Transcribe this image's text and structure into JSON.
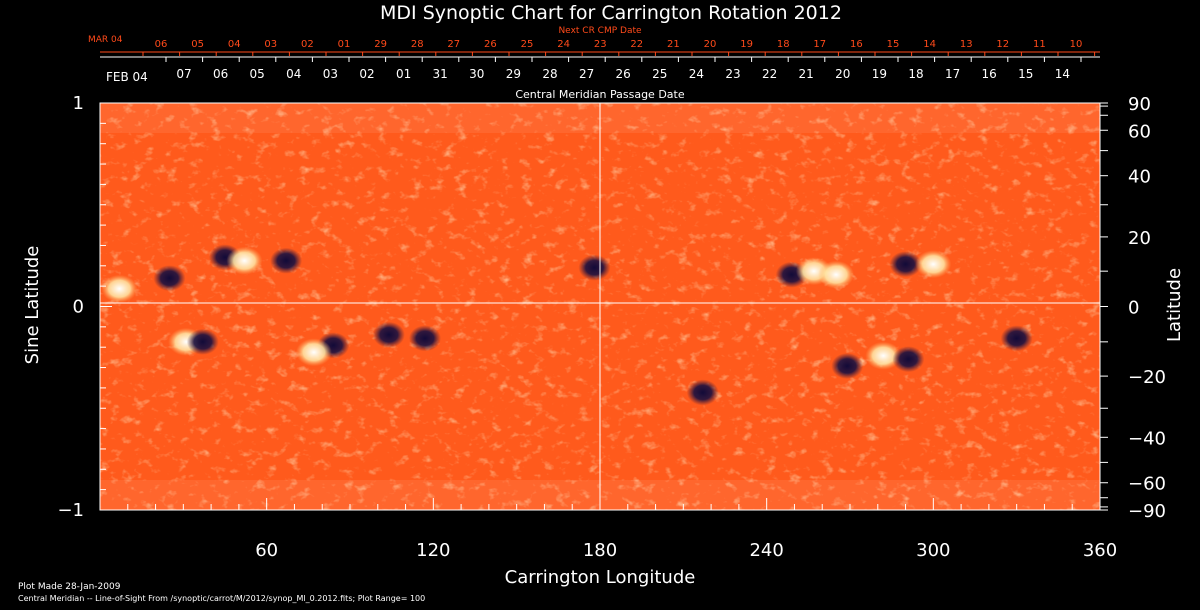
{
  "chart_data": {
    "type": "heatmap",
    "title": "MDI Synoptic Chart for Carrington Rotation 2012",
    "xlabel": "Carrington Longitude",
    "ylabel_left": "Sine Latitude",
    "ylabel_right": "Latitude",
    "top_axis_label": "Central Meridian Passage Date",
    "next_cr_label": "Next CR CMP Date",
    "xlim": [
      0,
      360
    ],
    "ylim": [
      -1,
      1
    ],
    "x_ticks": [
      60,
      120,
      180,
      240,
      300,
      360
    ],
    "y_ticks_left": [
      "1",
      "0",
      "−1"
    ],
    "y_ticks_right": [
      "90",
      "60",
      "40",
      "20",
      "0",
      "−20",
      "−40",
      "−60",
      "−90"
    ],
    "top_dates_black": {
      "month": "FEB 04",
      "labels": [
        "07",
        "06",
        "05",
        "04",
        "03",
        "02",
        "01",
        "31",
        "30",
        "29",
        "28",
        "27",
        "26",
        "25",
        "24",
        "23",
        "22",
        "21",
        "20",
        "19",
        "18",
        "17",
        "16",
        "15",
        "14"
      ]
    },
    "top_dates_red": {
      "month": "MAR 04",
      "labels": [
        "06",
        "05",
        "04",
        "03",
        "02",
        "01",
        "29",
        "28",
        "27",
        "26",
        "25",
        "24",
        "23",
        "22",
        "21",
        "20",
        "19",
        "18",
        "17",
        "16",
        "15",
        "14",
        "13",
        "12",
        "11",
        "10"
      ]
    },
    "colors": {
      "background": "#000000",
      "field_base": "#ff5a1c",
      "positive_polarity": "#ffffff",
      "negative_polarity": "#1a1040",
      "red_labels": "#ff4a1a",
      "axis_white": "#ffffff"
    },
    "active_regions": [
      {
        "lon": 25,
        "lat": 8,
        "polarity": "negative"
      },
      {
        "lon": 7,
        "lat": 5,
        "polarity": "positive"
      },
      {
        "lon": 45,
        "lat": 14,
        "polarity": "negative"
      },
      {
        "lon": 52,
        "lat": 13,
        "polarity": "positive"
      },
      {
        "lon": 67,
        "lat": 13,
        "polarity": "negative"
      },
      {
        "lon": 31,
        "lat": -10,
        "polarity": "positive"
      },
      {
        "lon": 37,
        "lat": -10,
        "polarity": "negative"
      },
      {
        "lon": 84,
        "lat": -11,
        "polarity": "negative"
      },
      {
        "lon": 77,
        "lat": -13,
        "polarity": "positive"
      },
      {
        "lon": 104,
        "lat": -8,
        "polarity": "negative"
      },
      {
        "lon": 117,
        "lat": -9,
        "polarity": "negative"
      },
      {
        "lon": 178,
        "lat": 11,
        "polarity": "negative"
      },
      {
        "lon": 249,
        "lat": 9,
        "polarity": "negative"
      },
      {
        "lon": 257,
        "lat": 10,
        "polarity": "positive"
      },
      {
        "lon": 265,
        "lat": 9,
        "polarity": "positive"
      },
      {
        "lon": 290,
        "lat": 12,
        "polarity": "negative"
      },
      {
        "lon": 300,
        "lat": 12,
        "polarity": "positive"
      },
      {
        "lon": 282,
        "lat": -14,
        "polarity": "positive"
      },
      {
        "lon": 291,
        "lat": -15,
        "polarity": "negative"
      },
      {
        "lon": 269,
        "lat": -17,
        "polarity": "negative"
      },
      {
        "lon": 330,
        "lat": -9,
        "polarity": "negative"
      },
      {
        "lon": 217,
        "lat": -25,
        "polarity": "negative"
      }
    ]
  },
  "footer": {
    "plot_made": "Plot Made 28-Jan-2009",
    "source": "Central Meridian -- Line-of-Sight From /synoptic/carrot/M/2012/synop_Ml_0.2012.fits; Plot Range=  100"
  }
}
